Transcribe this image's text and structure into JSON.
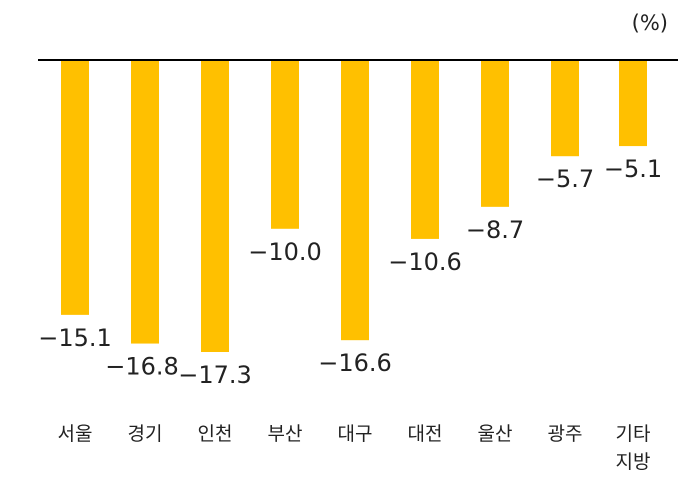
{
  "chart_data": {
    "type": "bar",
    "unit_label": "(%)",
    "categories": [
      [
        "서울"
      ],
      [
        "경기"
      ],
      [
        "인천"
      ],
      [
        "부산"
      ],
      [
        "대구"
      ],
      [
        "대전"
      ],
      [
        "울산"
      ],
      [
        "광주"
      ],
      [
        "기타",
        "지방"
      ]
    ],
    "value_labels": [
      "−15.1",
      "−16.8",
      "−17.3",
      "−10.0",
      "−16.6",
      "−10.6",
      "−8.7",
      "−5.7",
      "−5.1"
    ],
    "values": [
      -15.1,
      -16.8,
      -17.3,
      -10.0,
      -16.6,
      -10.6,
      -8.7,
      -5.7,
      -5.1
    ],
    "ylim": [
      -17.3,
      0
    ],
    "grid": false,
    "legend": "none",
    "colors": {
      "bar": "#FFC000",
      "axis": "#000000",
      "text": "#222222"
    }
  }
}
